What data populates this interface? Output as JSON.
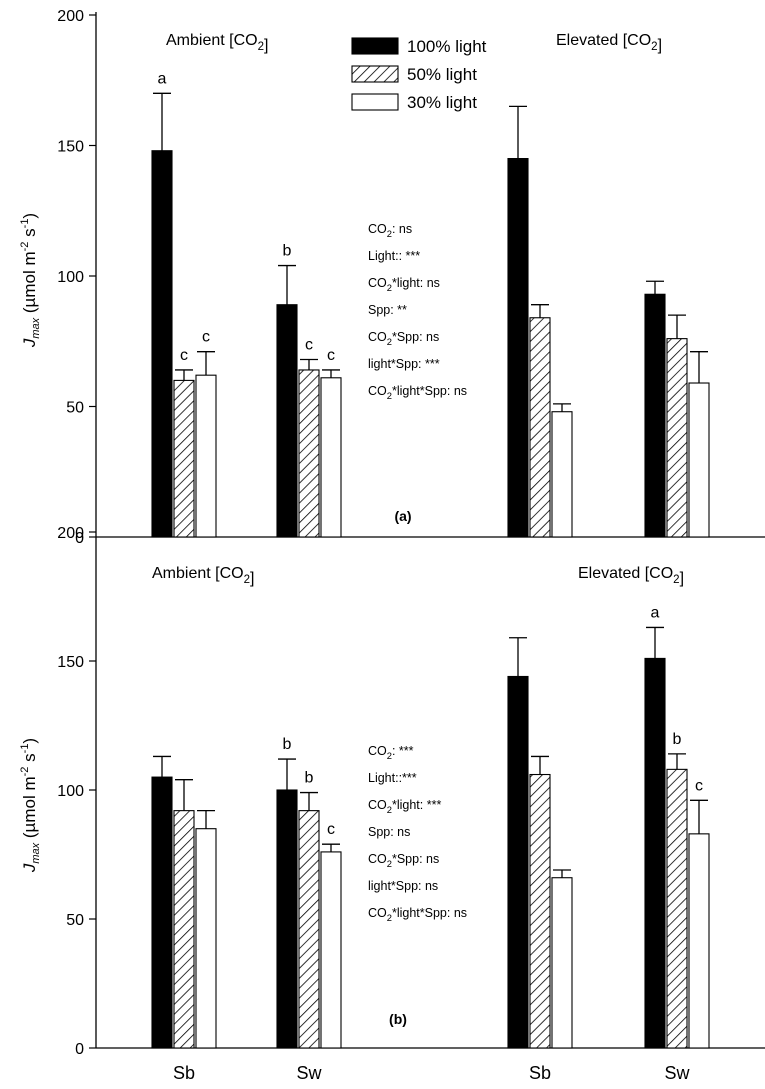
{
  "chart_data": [
    {
      "type": "bar",
      "panel_label": "(a)",
      "ylabel": "Jmax (µmol m-2 s-1)",
      "ylim": [
        0,
        200
      ],
      "yticks": [
        0,
        50,
        100,
        150,
        200
      ],
      "group_labels": [
        "Ambient [CO2]",
        "Elevated [CO2]"
      ],
      "categories": [
        "Sb",
        "Sw",
        "Sb",
        "Sw"
      ],
      "legend": {
        "position": "top-center",
        "entries": [
          "100% light",
          "50% light",
          "30% light"
        ]
      },
      "series": [
        {
          "name": "100% light",
          "pattern": "solid",
          "values": [
            148,
            89,
            145,
            93
          ],
          "errors": [
            22,
            15,
            20,
            5
          ],
          "letters": [
            "a",
            "b",
            "",
            ""
          ]
        },
        {
          "name": "50% light",
          "pattern": "hatched",
          "values": [
            60,
            64,
            84,
            76
          ],
          "errors": [
            4,
            4,
            5,
            9
          ],
          "letters": [
            "c",
            "c",
            "",
            ""
          ]
        },
        {
          "name": "30% light",
          "pattern": "open",
          "values": [
            62,
            61,
            48,
            59
          ],
          "errors": [
            9,
            3,
            3,
            12
          ],
          "letters": [
            "c",
            "c",
            "",
            ""
          ]
        }
      ],
      "stats": [
        {
          "pre": "CO",
          "sub": "2",
          "post": ": ns"
        },
        {
          "pre": "Light:: ***",
          "sub": "",
          "post": ""
        },
        {
          "pre": "CO",
          "sub": "2",
          "post": "*light: ns"
        },
        {
          "pre": "Spp: **",
          "sub": "",
          "post": ""
        },
        {
          "pre": "CO",
          "sub": "2",
          "post": "*Spp: ns"
        },
        {
          "pre": "light*Spp: ***",
          "sub": "",
          "post": ""
        },
        {
          "pre": "CO",
          "sub": "2",
          "post": "*light*Spp: ns"
        }
      ]
    },
    {
      "type": "bar",
      "panel_label": "(b)",
      "ylabel": "Jmax (µmol m-2 s-1)",
      "ylim": [
        0,
        200
      ],
      "yticks": [
        0,
        50,
        100,
        150,
        200
      ],
      "group_labels": [
        "Ambient [CO2]",
        "Elevated [CO2]"
      ],
      "categories": [
        "Sb",
        "Sw",
        "Sb",
        "Sw"
      ],
      "series": [
        {
          "name": "100% light",
          "pattern": "solid",
          "values": [
            105,
            100,
            144,
            151
          ],
          "errors": [
            8,
            12,
            15,
            12
          ],
          "letters": [
            "",
            "b",
            "",
            "a"
          ]
        },
        {
          "name": "50% light",
          "pattern": "hatched",
          "values": [
            92,
            92,
            106,
            108
          ],
          "errors": [
            12,
            7,
            7,
            6
          ],
          "letters": [
            "",
            "b",
            "",
            "b"
          ]
        },
        {
          "name": "30% light",
          "pattern": "open",
          "values": [
            85,
            76,
            66,
            83
          ],
          "errors": [
            7,
            3,
            3,
            13
          ],
          "letters": [
            "",
            "c",
            "",
            "c"
          ]
        }
      ],
      "stats": [
        {
          "pre": "CO",
          "sub": "2",
          "post": ": ***"
        },
        {
          "pre": "Light::***",
          "sub": "",
          "post": ""
        },
        {
          "pre": "CO",
          "sub": "2",
          "post": "*light: ***"
        },
        {
          "pre": "Spp: ns",
          "sub": "",
          "post": ""
        },
        {
          "pre": "CO",
          "sub": "2",
          "post": "*Spp: ns"
        },
        {
          "pre": "light*Spp: ns",
          "sub": "",
          "post": ""
        },
        {
          "pre": "CO",
          "sub": "2",
          "post": "*light*Spp: ns"
        }
      ]
    }
  ]
}
